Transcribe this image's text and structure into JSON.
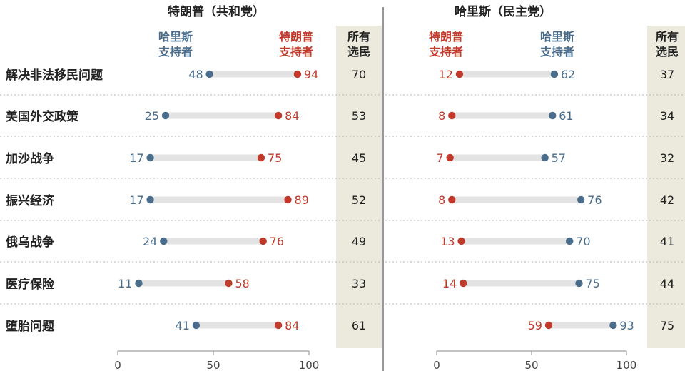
{
  "chart_data": {
    "type": "dot-range",
    "categories": [
      "解决非法移民问题",
      "美国外交政策",
      "加沙战争",
      "振兴经济",
      "俄乌战争",
      "医疗保险",
      "堕胎问题"
    ],
    "xlim": [
      0,
      100
    ],
    "xticks": [
      0,
      50,
      100
    ],
    "xtick_labels": [
      "0",
      "50",
      "100"
    ],
    "grid": false,
    "colors": {
      "trump": "#c0392b",
      "harris": "#4a6d8c",
      "range": "#e3e3e3",
      "all_voters_bg": "#ebeadc",
      "divider": "#555555"
    },
    "panels": [
      {
        "title": "特朗普（共和党）",
        "all_voters_label": [
          "所有",
          "选民"
        ],
        "series": [
          {
            "name": "哈里斯支持者",
            "label_lines": [
              "哈里斯",
              "支持者"
            ],
            "color": "#4a6d8c",
            "values": [
              48,
              25,
              17,
              17,
              24,
              11,
              41
            ]
          },
          {
            "name": "特朗普支持者",
            "label_lines": [
              "特朗普",
              "支持者"
            ],
            "color": "#c0392b",
            "values": [
              94,
              84,
              75,
              89,
              76,
              58,
              84
            ]
          }
        ],
        "all_voters": [
          70,
          53,
          45,
          52,
          49,
          33,
          61
        ]
      },
      {
        "title": "哈里斯（民主党）",
        "all_voters_label": [
          "所有",
          "选民"
        ],
        "series": [
          {
            "name": "特朗普支持者",
            "label_lines": [
              "特朗普",
              "支持者"
            ],
            "color": "#c0392b",
            "values": [
              12,
              8,
              7,
              8,
              13,
              14,
              59
            ]
          },
          {
            "name": "哈里斯支持者",
            "label_lines": [
              "哈里斯",
              "支持者"
            ],
            "color": "#4a6d8c",
            "values": [
              62,
              61,
              57,
              76,
              70,
              75,
              93
            ]
          }
        ],
        "all_voters": [
          37,
          34,
          32,
          42,
          41,
          44,
          75
        ]
      }
    ]
  }
}
